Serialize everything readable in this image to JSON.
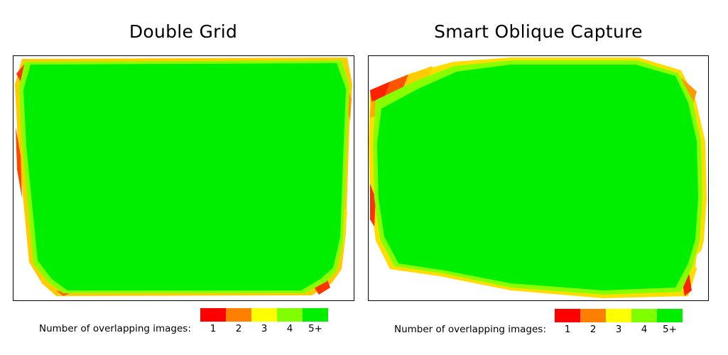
{
  "panels": [
    {
      "title": "Double Grid",
      "legend_label": "Number of overlapping images:",
      "legend_ticks": [
        "1",
        "2",
        "3",
        "4",
        "5+"
      ]
    },
    {
      "title": "Smart Oblique Capture",
      "legend_label": "Number of overlapping images:",
      "legend_ticks": [
        "1",
        "2",
        "3",
        "4",
        "5+"
      ]
    }
  ],
  "colors": {
    "overlap_1": "#ff0000",
    "overlap_2": "#ff8000",
    "overlap_3": "#ffff00",
    "overlap_4": "#80ff00",
    "overlap_5plus": "#00ee00"
  }
}
